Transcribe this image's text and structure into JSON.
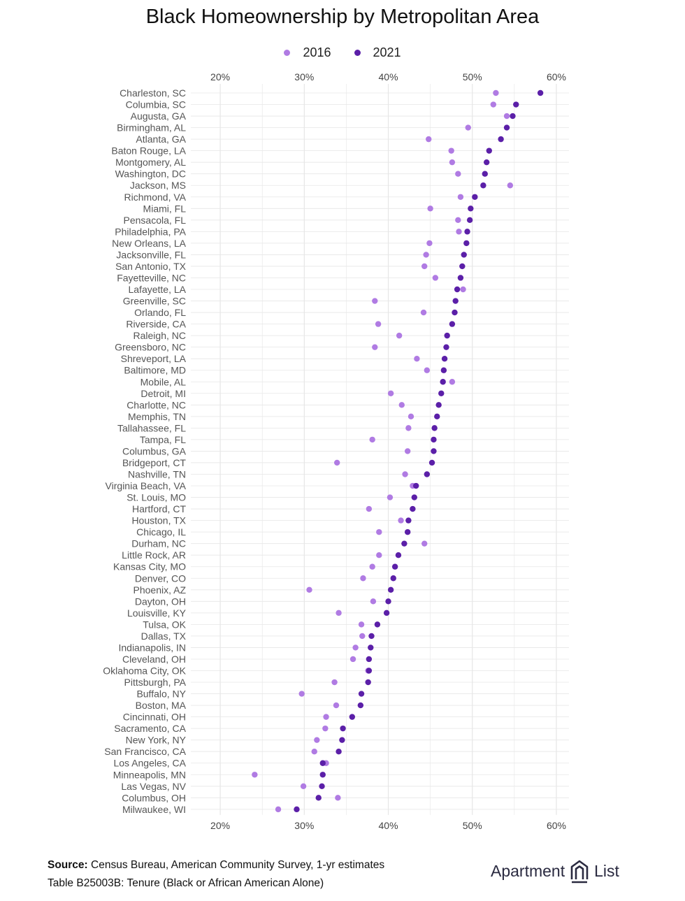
{
  "colors": {
    "series_2016": "#b07be3",
    "series_2021": "#5b1fa8",
    "grid": "#e6e6e6",
    "label": "#555555"
  },
  "chart_data": {
    "type": "scatter",
    "title": "Black Homeownership by Metropolitan Area",
    "legend_position": "top",
    "x_axis": {
      "range": [
        16.5,
        61.5
      ],
      "ticks": [
        20,
        30,
        40,
        50,
        60
      ],
      "tick_labels": [
        "20%",
        "30%",
        "40%",
        "50%",
        "60%"
      ],
      "position": "top-and-bottom"
    },
    "grid": true,
    "series": [
      {
        "name": "2016",
        "color": "#b07be3"
      },
      {
        "name": "2021",
        "color": "#5b1fa8"
      }
    ],
    "metros": [
      {
        "metro": "Charleston, SC",
        "v2016": 52.8,
        "v2021": 58.1
      },
      {
        "metro": "Columbia, SC",
        "v2016": 52.5,
        "v2021": 55.2
      },
      {
        "metro": "Augusta, GA",
        "v2016": 54.1,
        "v2021": 54.8
      },
      {
        "metro": "Birmingham, AL",
        "v2016": 49.5,
        "v2021": 54.1
      },
      {
        "metro": "Atlanta, GA",
        "v2016": 44.8,
        "v2021": 53.4
      },
      {
        "metro": "Baton Rouge, LA",
        "v2016": 47.5,
        "v2021": 52.0
      },
      {
        "metro": "Montgomery, AL",
        "v2016": 47.6,
        "v2021": 51.7
      },
      {
        "metro": "Washington, DC",
        "v2016": 48.3,
        "v2021": 51.5
      },
      {
        "metro": "Jackson, MS",
        "v2016": 54.5,
        "v2021": 51.3
      },
      {
        "metro": "Richmond, VA",
        "v2016": 48.6,
        "v2021": 50.3
      },
      {
        "metro": "Miami, FL",
        "v2016": 45.0,
        "v2021": 49.8
      },
      {
        "metro": "Pensacola, FL",
        "v2016": 48.3,
        "v2021": 49.7
      },
      {
        "metro": "Philadelphia, PA",
        "v2016": 48.4,
        "v2021": 49.4
      },
      {
        "metro": "New Orleans, LA",
        "v2016": 44.9,
        "v2021": 49.3
      },
      {
        "metro": "Jacksonville, FL",
        "v2016": 44.5,
        "v2021": 49.0
      },
      {
        "metro": "San Antonio, TX",
        "v2016": 44.3,
        "v2021": 48.8
      },
      {
        "metro": "Fayetteville, NC",
        "v2016": 45.6,
        "v2021": 48.6
      },
      {
        "metro": "Lafayette, LA",
        "v2016": 48.9,
        "v2021": 48.2
      },
      {
        "metro": "Greenville, SC",
        "v2016": 38.4,
        "v2021": 48.0
      },
      {
        "metro": "Orlando, FL",
        "v2016": 44.2,
        "v2021": 47.9
      },
      {
        "metro": "Riverside, CA",
        "v2016": 38.8,
        "v2021": 47.6
      },
      {
        "metro": "Raleigh, NC",
        "v2016": 41.3,
        "v2021": 47.0
      },
      {
        "metro": "Greensboro, NC",
        "v2016": 38.4,
        "v2021": 46.9
      },
      {
        "metro": "Shreveport, LA",
        "v2016": 43.4,
        "v2021": 46.7
      },
      {
        "metro": "Baltimore, MD",
        "v2016": 44.6,
        "v2021": 46.6
      },
      {
        "metro": "Mobile, AL",
        "v2016": 47.6,
        "v2021": 46.5
      },
      {
        "metro": "Detroit, MI",
        "v2016": 40.3,
        "v2021": 46.3
      },
      {
        "metro": "Charlotte, NC",
        "v2016": 41.6,
        "v2021": 46.0
      },
      {
        "metro": "Memphis, TN",
        "v2016": 42.7,
        "v2021": 45.8
      },
      {
        "metro": "Tallahassee, FL",
        "v2016": 42.4,
        "v2021": 45.5
      },
      {
        "metro": "Tampa, FL",
        "v2016": 38.1,
        "v2021": 45.4
      },
      {
        "metro": "Columbus, GA",
        "v2016": 42.3,
        "v2021": 45.4
      },
      {
        "metro": "Bridgeport, CT",
        "v2016": 33.9,
        "v2021": 45.2
      },
      {
        "metro": "Nashville, TN",
        "v2016": 42.0,
        "v2021": 44.6
      },
      {
        "metro": "Virginia Beach, VA",
        "v2016": 42.9,
        "v2021": 43.3
      },
      {
        "metro": "St. Louis, MO",
        "v2016": 40.2,
        "v2021": 43.1
      },
      {
        "metro": "Hartford, CT",
        "v2016": 37.7,
        "v2021": 42.9
      },
      {
        "metro": "Houston, TX",
        "v2016": 41.5,
        "v2021": 42.4
      },
      {
        "metro": "Chicago, IL",
        "v2016": 38.9,
        "v2021": 42.3
      },
      {
        "metro": "Durham, NC",
        "v2016": 44.3,
        "v2021": 41.9
      },
      {
        "metro": "Little Rock, AR",
        "v2016": 38.9,
        "v2021": 41.2
      },
      {
        "metro": "Kansas City, MO",
        "v2016": 38.1,
        "v2021": 40.8
      },
      {
        "metro": "Denver, CO",
        "v2016": 37.0,
        "v2021": 40.6
      },
      {
        "metro": "Phoenix, AZ",
        "v2016": 30.6,
        "v2021": 40.3
      },
      {
        "metro": "Dayton, OH",
        "v2016": 38.2,
        "v2021": 40.0
      },
      {
        "metro": "Louisville, KY",
        "v2016": 34.1,
        "v2021": 39.8
      },
      {
        "metro": "Tulsa, OK",
        "v2016": 36.8,
        "v2021": 38.7
      },
      {
        "metro": "Dallas, TX",
        "v2016": 36.9,
        "v2021": 38.0
      },
      {
        "metro": "Indianapolis, IN",
        "v2016": 36.1,
        "v2021": 37.9
      },
      {
        "metro": "Cleveland, OH",
        "v2016": 35.8,
        "v2021": 37.7
      },
      {
        "metro": "Oklahoma City, OK",
        "v2016": 37.6,
        "v2021": 37.7
      },
      {
        "metro": "Pittsburgh, PA",
        "v2016": 33.6,
        "v2021": 37.6
      },
      {
        "metro": "Buffalo, NY",
        "v2016": 29.7,
        "v2021": 36.8
      },
      {
        "metro": "Boston, MA",
        "v2016": 33.8,
        "v2021": 36.7
      },
      {
        "metro": "Cincinnati, OH",
        "v2016": 32.6,
        "v2021": 35.7
      },
      {
        "metro": "Sacramento, CA",
        "v2016": 32.5,
        "v2021": 34.6
      },
      {
        "metro": "New York, NY",
        "v2016": 31.5,
        "v2021": 34.5
      },
      {
        "metro": "San Francisco, CA",
        "v2016": 31.2,
        "v2021": 34.1
      },
      {
        "metro": "Los Angeles, CA",
        "v2016": 32.6,
        "v2021": 32.2
      },
      {
        "metro": "Minneapolis, MN",
        "v2016": 24.1,
        "v2021": 32.2
      },
      {
        "metro": "Las Vegas, NV",
        "v2016": 29.9,
        "v2021": 32.1
      },
      {
        "metro": "Columbus, OH",
        "v2016": 34.0,
        "v2021": 31.7
      },
      {
        "metro": "Milwaukee, WI",
        "v2016": 26.9,
        "v2021": 29.1
      }
    ]
  },
  "footer": {
    "source_label": "Source:",
    "source_text": " Census Bureau, American Community Survey, 1-yr estimates",
    "table_note": "Table B25003B: Tenure (Black or African American Alone)"
  },
  "brand": {
    "word1": "Apartment",
    "word2": "List",
    "logo_icon": "building-logo-icon"
  }
}
